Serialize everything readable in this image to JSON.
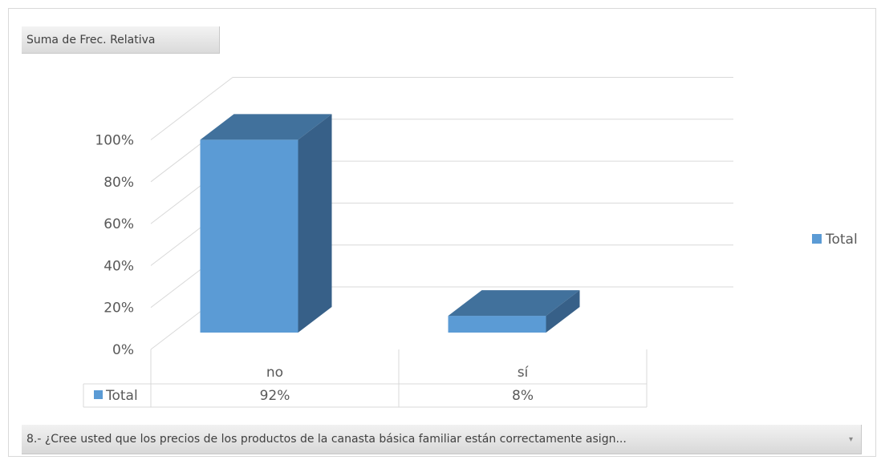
{
  "field_button": "Suma de Frec. Relativa",
  "axis_field_button": "8.- ¿Cree usted que los precios de los productos de la canasta básica familiar están correctamente asign...",
  "chart_data": {
    "type": "bar",
    "three_d": true,
    "categories": [
      "no",
      "sí"
    ],
    "series": [
      {
        "name": "Total",
        "values": [
          92,
          8
        ],
        "color": "#5b9bd5",
        "value_labels": [
          "92%",
          "8%"
        ]
      }
    ],
    "yticks": [
      "0%",
      "20%",
      "40%",
      "60%",
      "80%",
      "100%"
    ],
    "ylim": [
      0,
      100
    ],
    "grid": true,
    "legend": {
      "position": "right",
      "label": "Total"
    },
    "data_table": true
  }
}
